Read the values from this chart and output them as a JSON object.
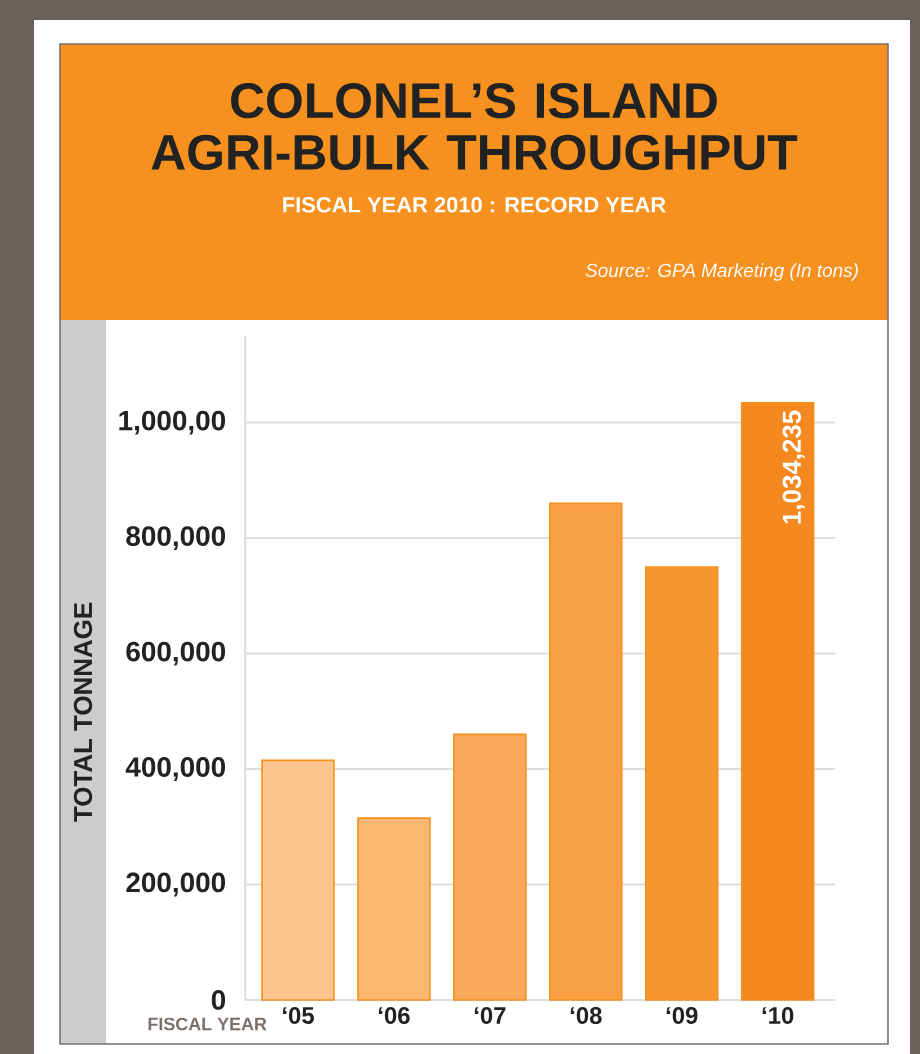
{
  "chart_data": {
    "type": "bar",
    "title": "COLONEL’S ISLAND AGRI-BULK THROUGHPUT",
    "subtitle": "FISCAL YEAR 2010 : RECORD YEAR",
    "annotations": [
      "Source: GPA Marketing (In tons)"
    ],
    "xlabel": "FISCAL YEAR",
    "ylabel": "TOTAL TONNAGE",
    "categories": [
      "‘05",
      "‘06",
      "‘07",
      "‘08",
      "‘09",
      "‘10"
    ],
    "values": [
      415000,
      315000,
      460000,
      860000,
      750000,
      1034235
    ],
    "colors": [
      "#fbc68e",
      "#fab872",
      "#f9aa5a",
      "#f8a144",
      "#f6962e",
      "#f5891f"
    ],
    "value_labels": [
      null,
      null,
      null,
      null,
      null,
      "1,034,235"
    ],
    "ylim": [
      0,
      1150000
    ],
    "yticks": [
      0,
      {
        "value": 200000,
        "label": "200,000"
      },
      {
        "value": 400000,
        "label": "400,000"
      },
      {
        "value": 600000,
        "label": "600,000"
      },
      {
        "value": 800000,
        "label": "800,000"
      },
      {
        "value": 1000000,
        "label": "1,000,00"
      }
    ],
    "grid": "y"
  }
}
